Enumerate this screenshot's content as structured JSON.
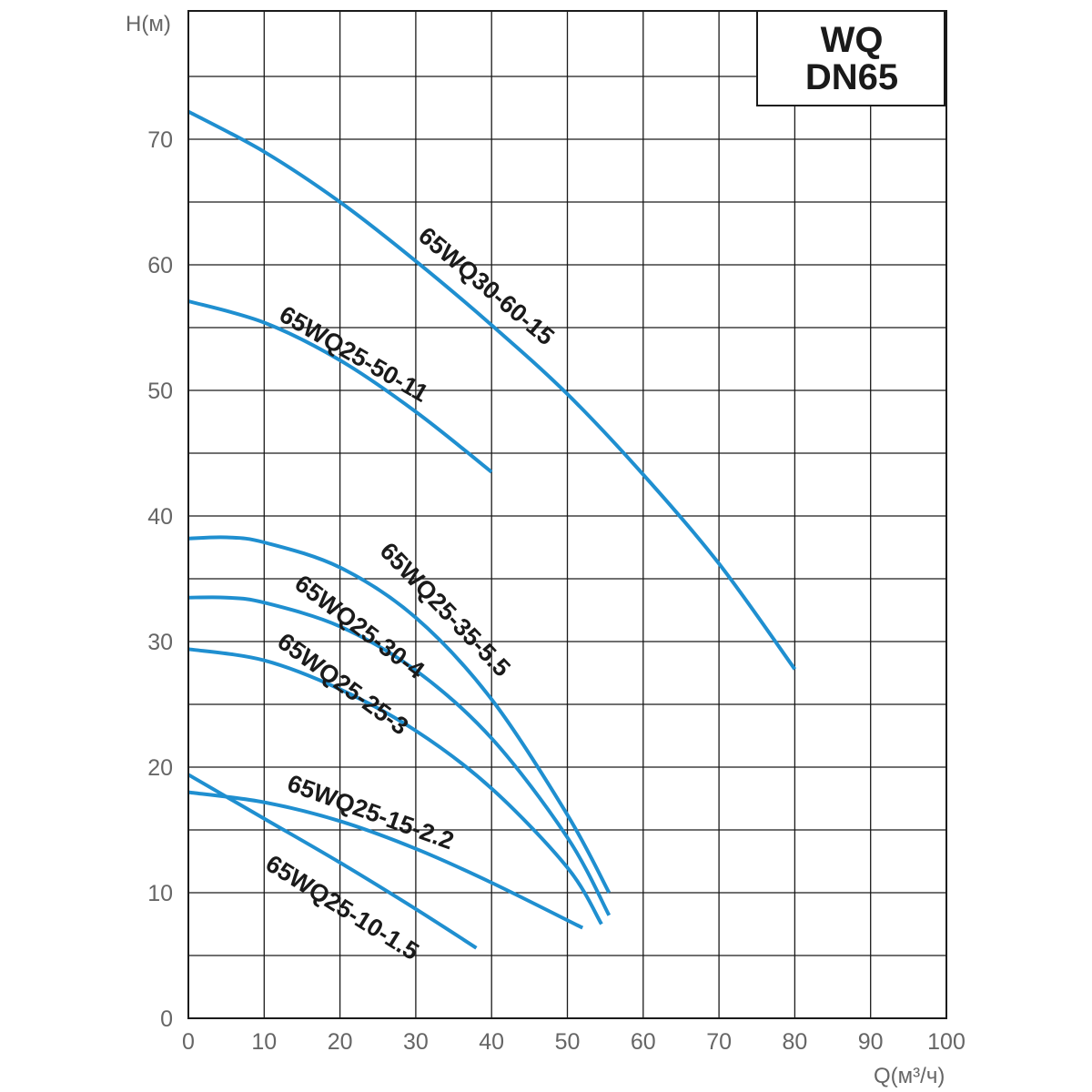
{
  "chart_data": {
    "type": "line",
    "title_lines": [
      "WQ",
      "DN65"
    ],
    "xlabel": "Q(м³/ч)",
    "ylabel": "H(м)",
    "xlim": [
      0,
      100
    ],
    "ylim": [
      0,
      80
    ],
    "x_ticks": [
      0,
      10,
      20,
      30,
      40,
      50,
      60,
      70,
      80,
      90,
      100
    ],
    "y_ticks": [
      0,
      10,
      20,
      30,
      40,
      50,
      60,
      70
    ],
    "grid": true,
    "line_color": "#1f8fd0",
    "series": [
      {
        "name": "65WQ30-60-15",
        "x": [
          0,
          10,
          20,
          30,
          40,
          50,
          60,
          70,
          80
        ],
        "y": [
          72.2,
          69,
          65,
          60.3,
          55.2,
          49.7,
          43.3,
          36.2,
          27.8
        ]
      },
      {
        "name": "65WQ25-50-11",
        "x": [
          0,
          10,
          20,
          30,
          40
        ],
        "y": [
          57.1,
          55.4,
          52.4,
          48.3,
          43.5
        ]
      },
      {
        "name": "65WQ25-35-5.5",
        "x": [
          0,
          5,
          10,
          20,
          30,
          40,
          50,
          55.5
        ],
        "y": [
          38.2,
          38.3,
          37.9,
          35.9,
          31.9,
          25.4,
          16.2,
          10
        ]
      },
      {
        "name": "65WQ25-30-4",
        "x": [
          0,
          5,
          10,
          20,
          30,
          40,
          50,
          55.5
        ],
        "y": [
          33.5,
          33.5,
          33.1,
          31.2,
          27.7,
          22.3,
          14.4,
          8.2
        ]
      },
      {
        "name": "65WQ25-25-3",
        "x": [
          0,
          10,
          20,
          30,
          40,
          50,
          54.5
        ],
        "y": [
          29.4,
          28.5,
          26.2,
          22.9,
          18.3,
          12,
          7.5
        ]
      },
      {
        "name": "65WQ25-15-2.2",
        "x": [
          0,
          10,
          20,
          30,
          40,
          52
        ],
        "y": [
          18,
          17.2,
          15.7,
          13.5,
          10.8,
          7.2
        ]
      },
      {
        "name": "65WQ25-10-1.5",
        "x": [
          0,
          10,
          20,
          30,
          38
        ],
        "y": [
          19.4,
          15.9,
          12.4,
          8.7,
          5.6
        ]
      }
    ]
  }
}
